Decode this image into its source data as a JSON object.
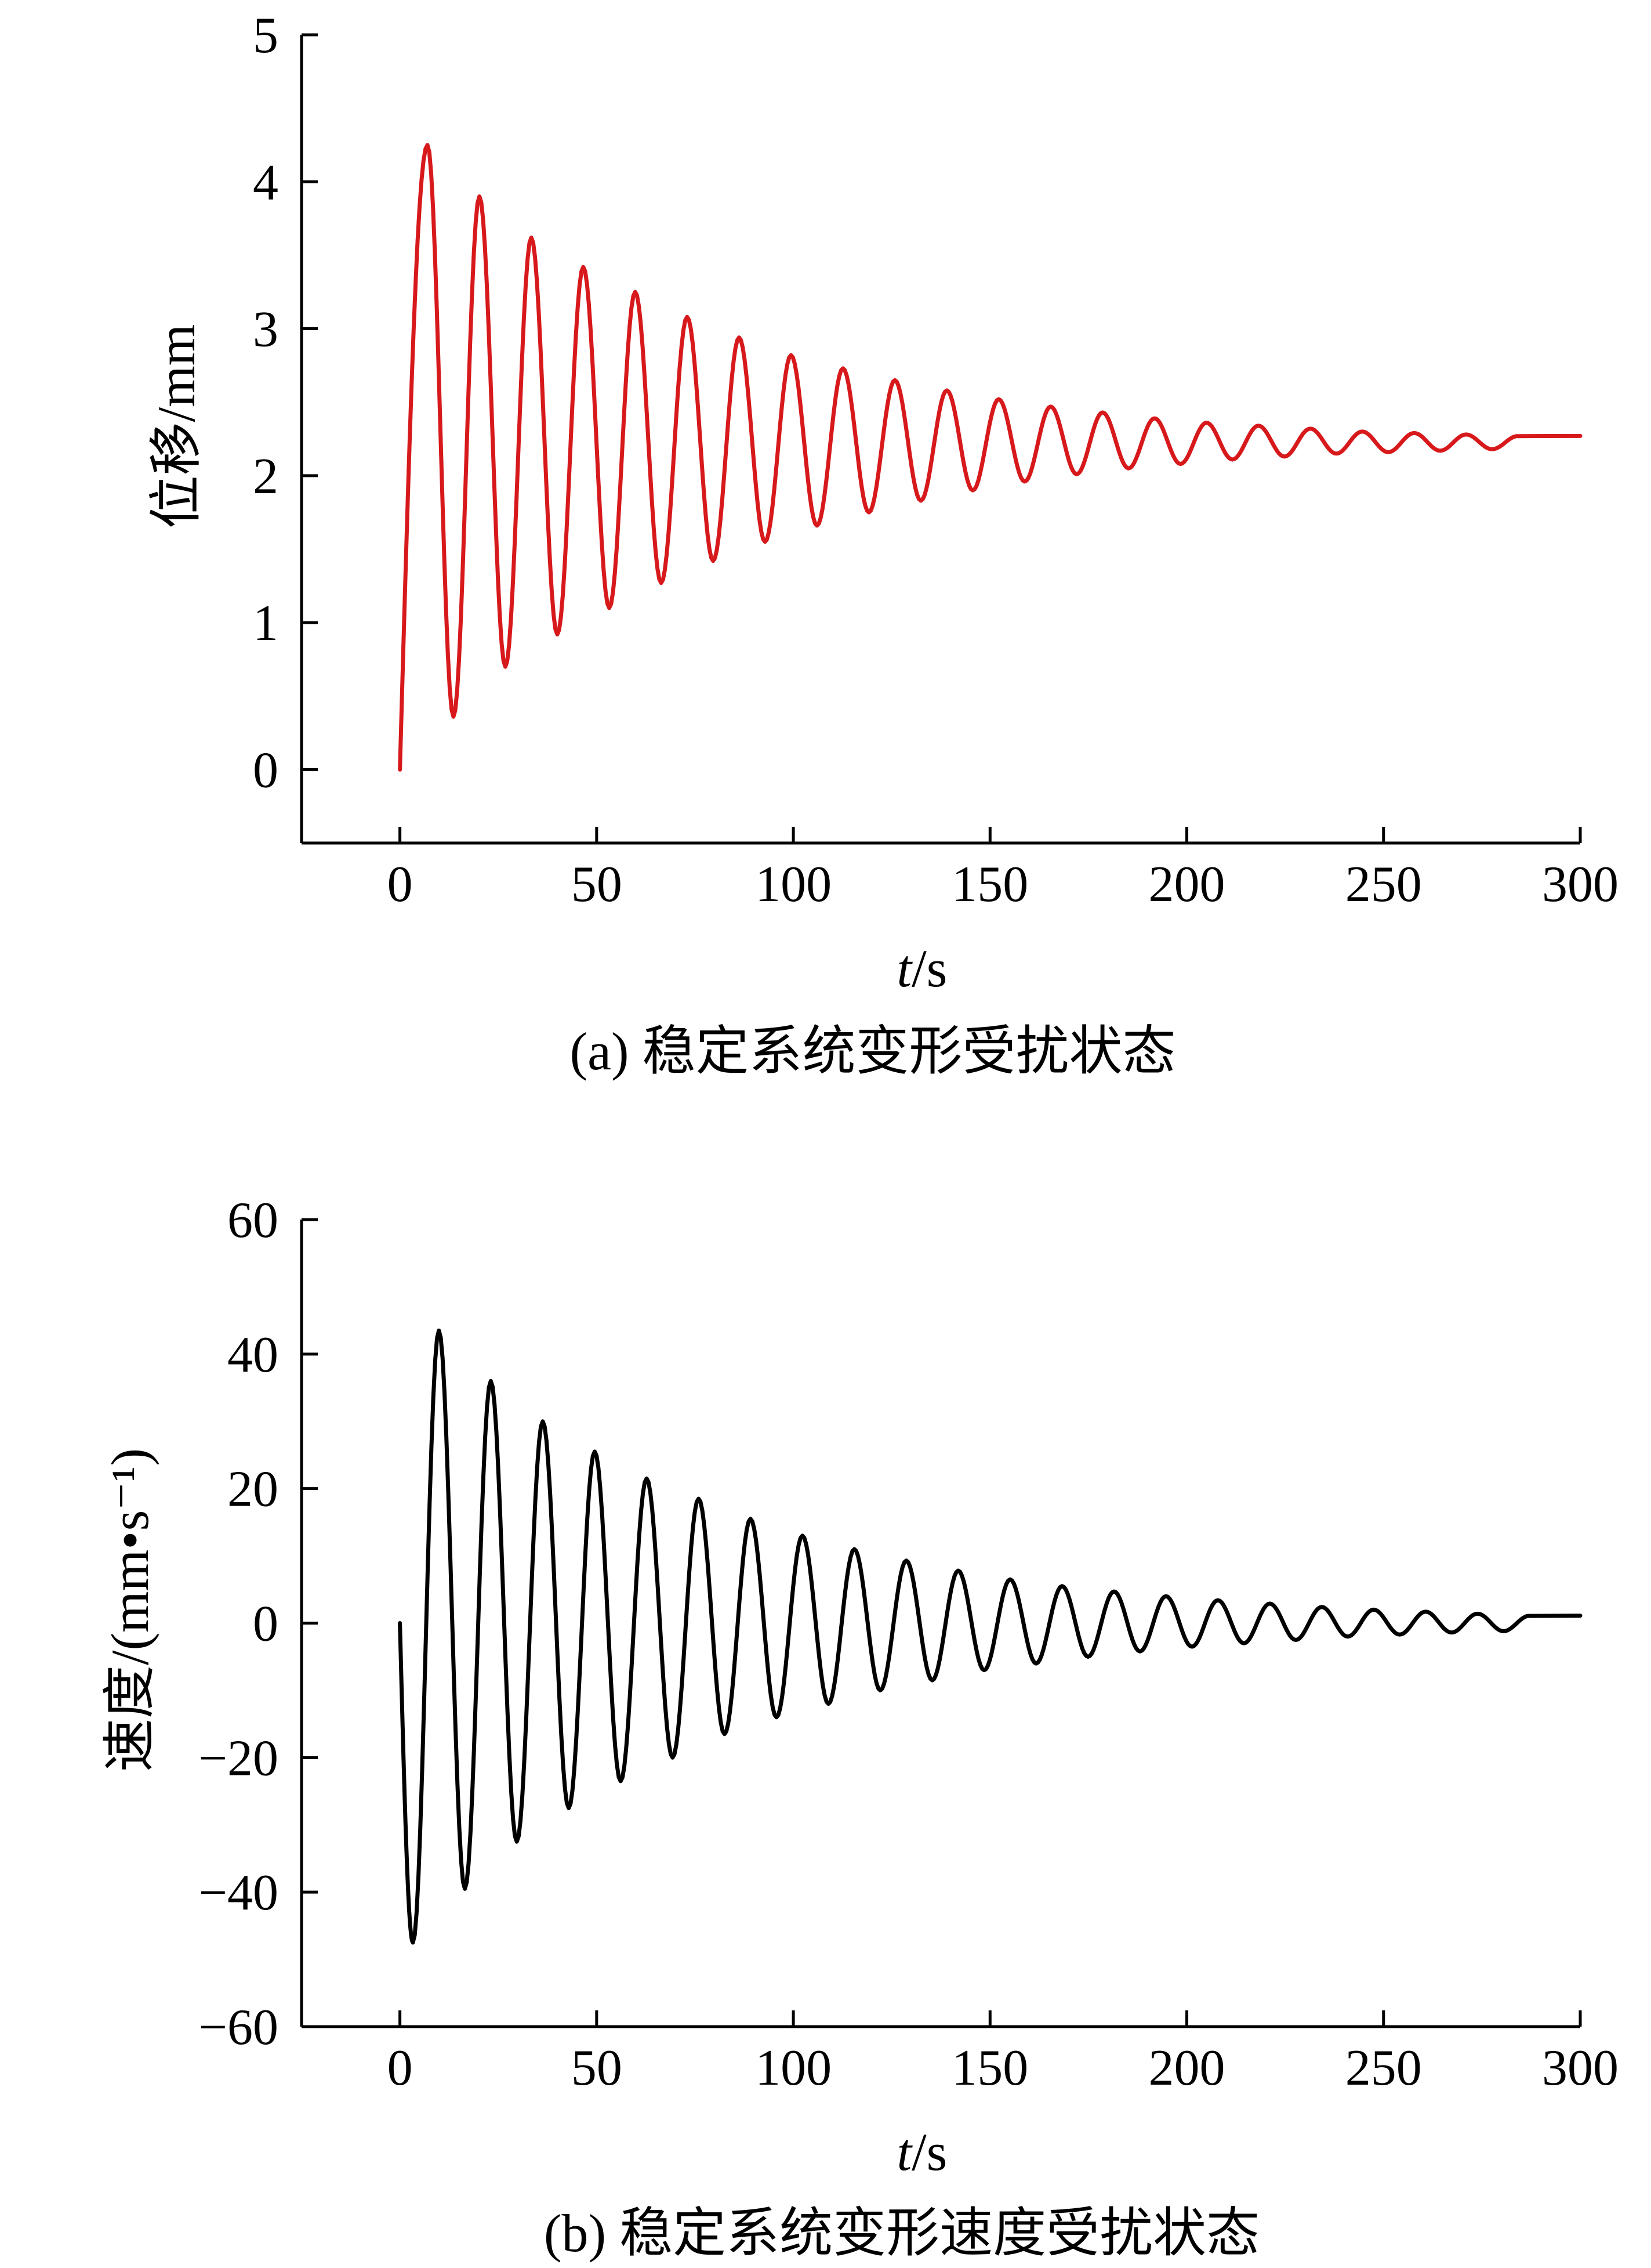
{
  "chart_data": [
    {
      "id": "a",
      "type": "line",
      "caption": "(a) 稳定系统变形受扰状态",
      "xlabel_italic": "t",
      "xlabel_unit": "/s",
      "ylabel": "位移/mm",
      "xlim": [
        -25,
        300
      ],
      "ylim": [
        -0.5,
        5
      ],
      "xticks": [
        0,
        50,
        100,
        150,
        200,
        250,
        300
      ],
      "yticks": [
        0,
        1,
        2,
        3,
        4,
        5
      ],
      "grid": false,
      "legend": "none",
      "series": [
        {
          "color": "#d7191c",
          "model": "damped_cosine",
          "x": [
            0,
            300
          ],
          "equilibrium": 2.2,
          "first_peak_time": 7,
          "period": 13.2,
          "peak_values": [
            4.25,
            3.9,
            3.62,
            3.42,
            3.25,
            3.08,
            2.94,
            2.82,
            2.73,
            2.65,
            2.58,
            2.52,
            2.47,
            2.43,
            2.39,
            2.36,
            2.34,
            2.32,
            2.3,
            2.29,
            2.28,
            2.27
          ],
          "trough_values": [
            0.36,
            0.7,
            0.92,
            1.1,
            1.27,
            1.42,
            1.55,
            1.66,
            1.75,
            1.83,
            1.9,
            1.96,
            2.01,
            2.05,
            2.08,
            2.11,
            2.13,
            2.15,
            2.16,
            2.17,
            2.18
          ]
        }
      ]
    },
    {
      "id": "b",
      "type": "line",
      "caption": "(b) 稳定系统变形速度受扰状态",
      "xlabel_italic": "t",
      "xlabel_unit": "/s",
      "ylabel": "速度/(mm•s⁻¹)",
      "xlim": [
        -25,
        300
      ],
      "ylim": [
        -60,
        60
      ],
      "xticks": [
        0,
        50,
        100,
        150,
        200,
        250,
        300
      ],
      "yticks": [
        -60,
        -40,
        -20,
        0,
        20,
        40,
        60
      ],
      "ytick_labels": [
        "−60",
        "−40",
        "−20",
        "0",
        "20",
        "40",
        "60"
      ],
      "grid": false,
      "legend": "none",
      "series": [
        {
          "color": "#000000",
          "model": "damped_sine",
          "x": [
            0,
            300
          ],
          "first_trough_time": 3.3,
          "period": 13.2,
          "trough_values": [
            -47.5,
            -39.5,
            -32.5,
            -27.5,
            -23.5,
            -20,
            -16.5,
            -14,
            -12,
            -10,
            -8.5,
            -7,
            -6,
            -5,
            -4.2,
            -3.5,
            -3,
            -2.5,
            -2,
            -1.7,
            -1.4,
            -1.2
          ],
          "peak_values": [
            43.5,
            36,
            30,
            25.5,
            21.5,
            18.5,
            15.5,
            13,
            11,
            9.3,
            7.8,
            6.5,
            5.5,
            4.7,
            4,
            3.4,
            2.9,
            2.4,
            2,
            1.7,
            1.4,
            1.1
          ]
        }
      ]
    }
  ]
}
